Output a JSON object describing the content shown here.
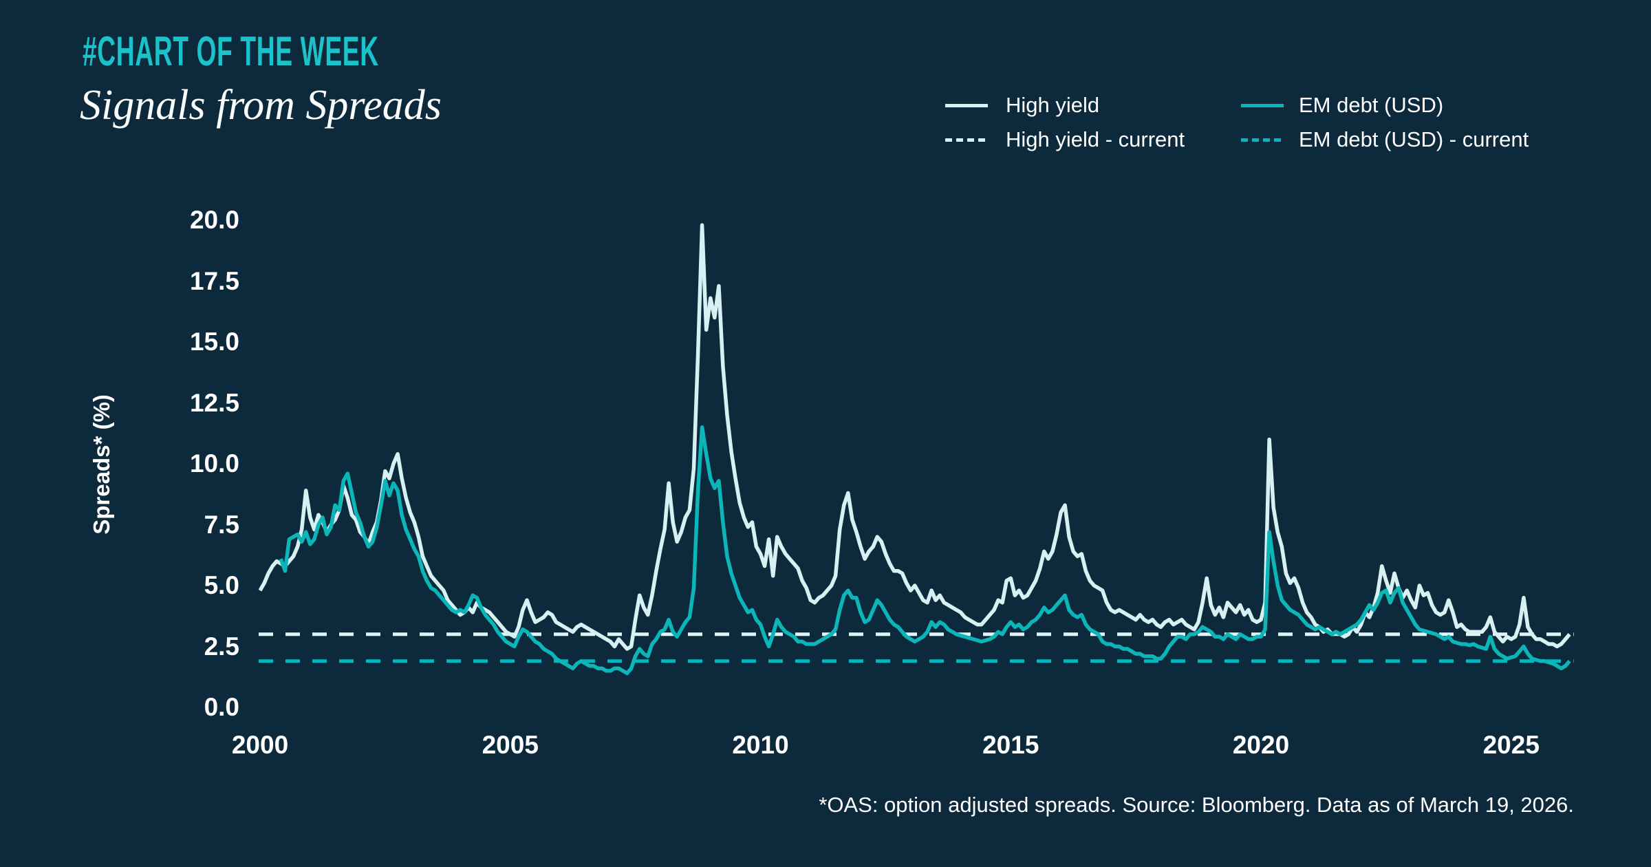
{
  "page": {
    "background": "#0d293c"
  },
  "header": {
    "kicker": "#CHART OF THE WEEK",
    "title": "Signals from Spreads"
  },
  "legend": {
    "items": [
      {
        "label": "High yield",
        "style": "solid",
        "color": "#d7f1f3"
      },
      {
        "label": "EM debt (USD)",
        "style": "solid",
        "color": "#0bb5b8"
      },
      {
        "label": "High yield - current",
        "style": "dotted",
        "color": "#d7f1f3"
      },
      {
        "label": "EM debt (USD) - current",
        "style": "dotted",
        "color": "#00b8c0"
      }
    ]
  },
  "footnote": "*OAS: option adjusted spreads. Source: Bloomberg. Data as of March 19, 2026.",
  "chart_data": {
    "type": "line",
    "title": "Signals from Spreads",
    "ylabel": "Spreads* (%)",
    "xlabel": "",
    "ylim": [
      0,
      20
    ],
    "xlim": [
      2000,
      2026.3
    ],
    "grid": false,
    "legend_position": "top-right",
    "y_ticks": [
      {
        "value": 0,
        "label": "0.0"
      },
      {
        "value": 2.5,
        "label": "2.5"
      },
      {
        "value": 5,
        "label": "5.0"
      },
      {
        "value": 7.5,
        "label": "7.5"
      },
      {
        "value": 10,
        "label": "10.0"
      },
      {
        "value": 12.5,
        "label": "12.5"
      },
      {
        "value": 15,
        "label": "15.0"
      },
      {
        "value": 17.5,
        "label": "17.5"
      },
      {
        "value": 20,
        "label": "20.0"
      }
    ],
    "x_ticks": [
      {
        "value": 2000,
        "label": "2000"
      },
      {
        "value": 2005,
        "label": "2005"
      },
      {
        "value": 2010,
        "label": "2010"
      },
      {
        "value": 2015,
        "label": "2015"
      },
      {
        "value": 2020,
        "label": "2020"
      },
      {
        "value": 2025,
        "label": "2025"
      }
    ],
    "series": [
      {
        "name": "High yield",
        "color": "#d7f1f3",
        "start_year": 2000,
        "points_per_year": 12,
        "values": [
          4.8,
          5.1,
          5.5,
          5.8,
          6.0,
          5.9,
          5.8,
          6.0,
          6.2,
          6.6,
          7.3,
          8.9,
          7.8,
          7.3,
          7.9,
          7.6,
          7.2,
          7.5,
          7.7,
          8.1,
          9.1,
          8.6,
          7.9,
          7.7,
          7.2,
          7.0,
          6.7,
          7.2,
          7.6,
          8.5,
          9.7,
          9.4,
          10.0,
          10.4,
          9.4,
          8.6,
          8.0,
          7.6,
          7.0,
          6.2,
          5.8,
          5.4,
          5.2,
          5.0,
          4.8,
          4.4,
          4.2,
          4.0,
          3.8,
          3.9,
          4.1,
          3.9,
          4.3,
          4.1,
          4.0,
          3.9,
          3.7,
          3.5,
          3.3,
          3.1,
          3.0,
          2.9,
          3.3,
          4.0,
          4.4,
          3.9,
          3.5,
          3.6,
          3.7,
          3.9,
          3.8,
          3.5,
          3.4,
          3.3,
          3.2,
          3.1,
          3.3,
          3.4,
          3.3,
          3.2,
          3.1,
          3.0,
          2.9,
          2.8,
          2.7,
          2.5,
          2.8,
          2.6,
          2.4,
          2.5,
          3.6,
          4.6,
          4.1,
          3.8,
          4.6,
          5.6,
          6.5,
          7.3,
          9.2,
          7.6,
          6.8,
          7.2,
          7.8,
          8.1,
          9.8,
          14.5,
          19.8,
          15.5,
          16.8,
          16.0,
          17.3,
          14.0,
          12.0,
          10.5,
          9.4,
          8.4,
          7.8,
          7.4,
          7.6,
          6.6,
          6.3,
          5.8,
          6.9,
          5.4,
          7.0,
          6.6,
          6.3,
          6.1,
          5.9,
          5.7,
          5.2,
          4.9,
          4.4,
          4.3,
          4.5,
          4.6,
          4.8,
          5.0,
          5.4,
          7.3,
          8.3,
          8.8,
          7.7,
          7.2,
          6.6,
          6.1,
          6.4,
          6.6,
          7.0,
          6.8,
          6.3,
          5.9,
          5.6,
          5.6,
          5.5,
          5.1,
          4.8,
          5.0,
          4.7,
          4.4,
          4.3,
          4.8,
          4.4,
          4.6,
          4.3,
          4.2,
          4.1,
          4.0,
          3.9,
          3.7,
          3.6,
          3.5,
          3.4,
          3.4,
          3.6,
          3.8,
          4.0,
          4.4,
          4.3,
          5.2,
          5.3,
          4.6,
          4.8,
          4.5,
          4.6,
          4.9,
          5.2,
          5.7,
          6.4,
          6.1,
          6.4,
          7.1,
          8.0,
          8.3,
          7.0,
          6.4,
          6.2,
          6.3,
          5.6,
          5.2,
          5.0,
          4.9,
          4.8,
          4.3,
          4.0,
          3.9,
          4.0,
          3.9,
          3.8,
          3.7,
          3.6,
          3.8,
          3.6,
          3.5,
          3.6,
          3.4,
          3.3,
          3.5,
          3.6,
          3.4,
          3.5,
          3.6,
          3.4,
          3.3,
          3.2,
          3.5,
          4.3,
          5.3,
          4.2,
          3.8,
          4.1,
          3.7,
          4.3,
          4.1,
          3.9,
          4.2,
          3.8,
          4.0,
          3.6,
          3.5,
          3.6,
          4.3,
          11.0,
          8.2,
          7.2,
          6.6,
          5.5,
          5.1,
          5.3,
          4.9,
          4.3,
          3.9,
          3.7,
          3.4,
          3.3,
          3.1,
          3.2,
          3.0,
          3.1,
          3.0,
          2.9,
          3.0,
          3.3,
          3.1,
          3.4,
          3.9,
          3.7,
          4.1,
          4.7,
          5.8,
          5.2,
          4.7,
          5.5,
          4.9,
          4.5,
          4.8,
          4.4,
          4.1,
          5.0,
          4.6,
          4.7,
          4.2,
          3.9,
          3.8,
          3.9,
          4.4,
          3.9,
          3.3,
          3.4,
          3.2,
          3.1,
          3.1,
          3.1,
          3.1,
          3.3,
          3.7,
          3.1,
          2.9,
          2.7,
          2.9,
          2.8,
          2.9,
          3.4,
          4.5,
          3.3,
          3.0,
          2.8,
          2.8,
          2.7,
          2.6,
          2.6,
          2.5,
          2.6,
          2.8,
          3.0
        ]
      },
      {
        "name": "EM debt (USD)",
        "color": "#0bb5b8",
        "start_year": 2000.4167,
        "points_per_year": 12,
        "values": [
          6.1,
          5.6,
          6.9,
          7.0,
          7.1,
          6.8,
          7.2,
          6.7,
          6.9,
          7.5,
          7.8,
          7.1,
          7.4,
          8.3,
          8.1,
          9.3,
          9.6,
          8.8,
          8.0,
          7.6,
          7.0,
          6.6,
          6.8,
          7.4,
          8.3,
          9.3,
          8.7,
          9.2,
          8.9,
          7.9,
          7.3,
          6.9,
          6.5,
          6.2,
          5.6,
          5.2,
          4.9,
          4.8,
          4.6,
          4.4,
          4.2,
          4.0,
          3.9,
          4.0,
          3.9,
          4.2,
          4.6,
          4.5,
          4.1,
          3.8,
          3.6,
          3.4,
          3.1,
          2.9,
          2.7,
          2.6,
          2.5,
          2.9,
          3.2,
          3.1,
          2.9,
          2.7,
          2.6,
          2.4,
          2.3,
          2.2,
          2.0,
          1.9,
          1.8,
          1.7,
          1.6,
          1.8,
          1.9,
          1.8,
          1.7,
          1.7,
          1.6,
          1.6,
          1.5,
          1.5,
          1.6,
          1.6,
          1.5,
          1.4,
          1.6,
          2.1,
          2.4,
          2.2,
          2.1,
          2.6,
          2.8,
          3.1,
          3.2,
          3.6,
          3.1,
          2.9,
          3.2,
          3.5,
          3.7,
          4.9,
          8.9,
          11.5,
          10.4,
          9.4,
          9.0,
          9.3,
          7.6,
          6.2,
          5.5,
          5.0,
          4.5,
          4.2,
          3.9,
          4.0,
          3.6,
          3.4,
          2.9,
          2.5,
          3.0,
          3.6,
          3.3,
          3.1,
          3.0,
          2.9,
          2.7,
          2.7,
          2.6,
          2.6,
          2.6,
          2.7,
          2.8,
          2.9,
          3.0,
          3.2,
          4.0,
          4.6,
          4.8,
          4.5,
          4.5,
          3.9,
          3.5,
          3.6,
          4.0,
          4.4,
          4.2,
          3.9,
          3.6,
          3.4,
          3.3,
          3.1,
          2.9,
          2.8,
          2.7,
          2.8,
          2.9,
          3.1,
          3.5,
          3.3,
          3.5,
          3.4,
          3.2,
          3.1,
          3.0,
          2.95,
          2.9,
          2.85,
          2.8,
          2.75,
          2.7,
          2.75,
          2.8,
          2.9,
          3.1,
          3.0,
          3.3,
          3.5,
          3.3,
          3.4,
          3.2,
          3.3,
          3.5,
          3.6,
          3.8,
          4.1,
          3.9,
          4.0,
          4.2,
          4.4,
          4.6,
          4.0,
          3.8,
          3.7,
          3.8,
          3.4,
          3.2,
          3.1,
          3.0,
          2.7,
          2.6,
          2.6,
          2.5,
          2.5,
          2.4,
          2.4,
          2.3,
          2.2,
          2.2,
          2.1,
          2.1,
          2.1,
          2.0,
          2.0,
          2.2,
          2.5,
          2.7,
          2.9,
          2.9,
          2.8,
          3.0,
          3.0,
          3.1,
          3.3,
          3.2,
          3.1,
          2.9,
          2.9,
          2.8,
          3.0,
          2.9,
          2.8,
          3.0,
          2.9,
          2.8,
          2.8,
          2.9,
          2.9,
          3.2,
          7.2,
          6.0,
          5.0,
          4.4,
          4.2,
          4.0,
          3.9,
          3.8,
          3.6,
          3.4,
          3.3,
          3.2,
          3.3,
          3.2,
          3.1,
          3.0,
          3.1,
          3.0,
          3.1,
          3.2,
          3.3,
          3.4,
          3.6,
          3.9,
          4.2,
          4.0,
          4.3,
          4.7,
          4.8,
          4.3,
          4.7,
          4.9,
          4.3,
          4.0,
          3.7,
          3.4,
          3.2,
          3.15,
          3.1,
          3.05,
          3.0,
          2.9,
          2.8,
          2.9,
          2.7,
          2.65,
          2.6,
          2.6,
          2.55,
          2.6,
          2.5,
          2.45,
          2.4,
          2.9,
          2.4,
          2.2,
          2.1,
          2.0,
          2.05,
          2.1,
          2.3,
          2.5,
          2.2,
          2.0,
          1.95,
          1.9,
          1.9,
          1.85,
          1.8,
          1.7,
          1.6,
          1.7,
          1.9
        ]
      }
    ],
    "current_lines": [
      {
        "name": "High yield - current",
        "value": 3.0,
        "color": "#e2f5f6"
      },
      {
        "name": "EM debt (USD) - current",
        "value": 1.9,
        "color": "#00b8c0"
      }
    ]
  }
}
